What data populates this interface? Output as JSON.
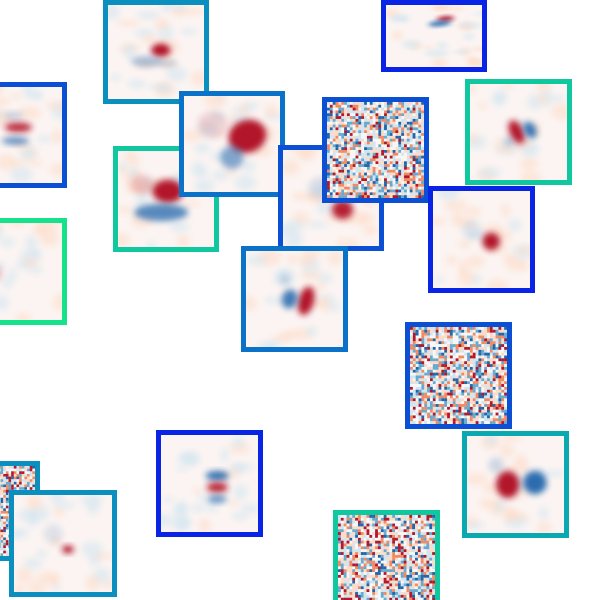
{
  "colors": {
    "background": "#ffffff",
    "colormap": [
      "#2166ac",
      "#67a9cf",
      "#d1e5f0",
      "#f7f7f7",
      "#fddbc7",
      "#ef8a62",
      "#b2182b"
    ],
    "border_palette": [
      "#0a24e6",
      "#0b4fd4",
      "#0a72c8",
      "#0a8fbf",
      "#0aa8b0",
      "#10c8a0",
      "#15e28a"
    ]
  },
  "tiles": [
    {
      "id": "t01",
      "kind": "filter",
      "border": "#0a8fbf",
      "pattern": "pair-h-small"
    },
    {
      "id": "t02",
      "kind": "filter",
      "border": "#0a24e6",
      "pattern": "dipole-h-small"
    },
    {
      "id": "t03",
      "kind": "filter",
      "border": "#0b4fd4",
      "pattern": "multi-h"
    },
    {
      "id": "t04",
      "kind": "filter",
      "border": "#10c8a0",
      "pattern": "dipole-diag"
    },
    {
      "id": "t05",
      "kind": "filter",
      "border": "#10c8a0",
      "pattern": "pair-v-large"
    },
    {
      "id": "t06",
      "kind": "filter",
      "border": "#0a72c8",
      "pattern": "pair-diag-large"
    },
    {
      "id": "t07",
      "kind": "filter",
      "border": "#0b4fd4",
      "pattern": "blob-red-low"
    },
    {
      "id": "t08",
      "kind": "noise",
      "border": "#0b4fd4",
      "pattern": "noise"
    },
    {
      "id": "t09",
      "kind": "filter",
      "border": "#15e28a",
      "pattern": "blob-blue-left"
    },
    {
      "id": "t10",
      "kind": "filter",
      "border": "#0a24e6",
      "pattern": "blob-red-center"
    },
    {
      "id": "t11",
      "kind": "filter",
      "border": "#0a72c8",
      "pattern": "pair-v-center"
    },
    {
      "id": "t12",
      "kind": "noise",
      "border": "#0b4fd4",
      "pattern": "noise"
    },
    {
      "id": "t13",
      "kind": "filter",
      "border": "#0a24e6",
      "pattern": "stack-h"
    },
    {
      "id": "t14",
      "kind": "filter",
      "border": "#0aa8b0",
      "pattern": "dipole-h-large"
    },
    {
      "id": "t15",
      "kind": "noise",
      "border": "#0a8fbf",
      "pattern": "noise"
    },
    {
      "id": "t16",
      "kind": "filter",
      "border": "#0a8fbf",
      "pattern": "blob-red-small"
    },
    {
      "id": "t17",
      "kind": "noise",
      "border": "#10c8a0",
      "pattern": "noise"
    }
  ]
}
